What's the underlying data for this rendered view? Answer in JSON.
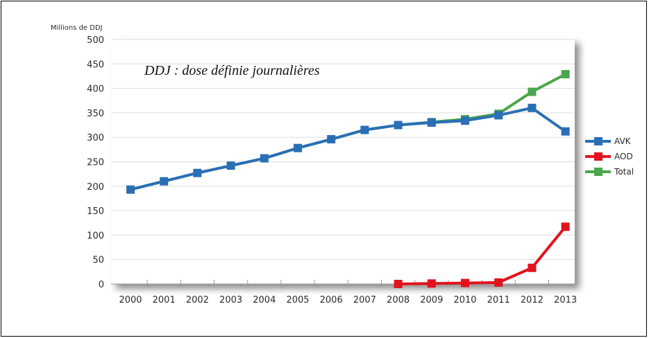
{
  "chart_data": {
    "type": "line",
    "title": "",
    "annotation": "DDJ : dose définie journalières",
    "ylabel": "Millions de DDJ",
    "xlabel": "",
    "ylim": [
      0,
      500
    ],
    "yticks": [
      0,
      50,
      100,
      150,
      200,
      250,
      300,
      350,
      400,
      450,
      500
    ],
    "categories": [
      "2000",
      "2001",
      "2002",
      "2003",
      "2004",
      "2005",
      "2006",
      "2007",
      "2008",
      "2009",
      "2010",
      "2011",
      "2012",
      "2013"
    ],
    "grid": true,
    "legend_position": "right",
    "series": [
      {
        "name": "AVK",
        "color": "#2a6fb5",
        "values": [
          193,
          210,
          227,
          242,
          257,
          278,
          296,
          315,
          325,
          330,
          334,
          345,
          360,
          312
        ]
      },
      {
        "name": "AOD",
        "color": "#e3121c",
        "values": [
          null,
          null,
          null,
          null,
          null,
          null,
          null,
          null,
          0,
          1,
          2,
          3,
          33,
          117
        ]
      },
      {
        "name": "Total",
        "color": "#4aa64a",
        "values": [
          193,
          210,
          227,
          242,
          257,
          278,
          296,
          315,
          325,
          331,
          337,
          348,
          393,
          429
        ]
      }
    ]
  }
}
